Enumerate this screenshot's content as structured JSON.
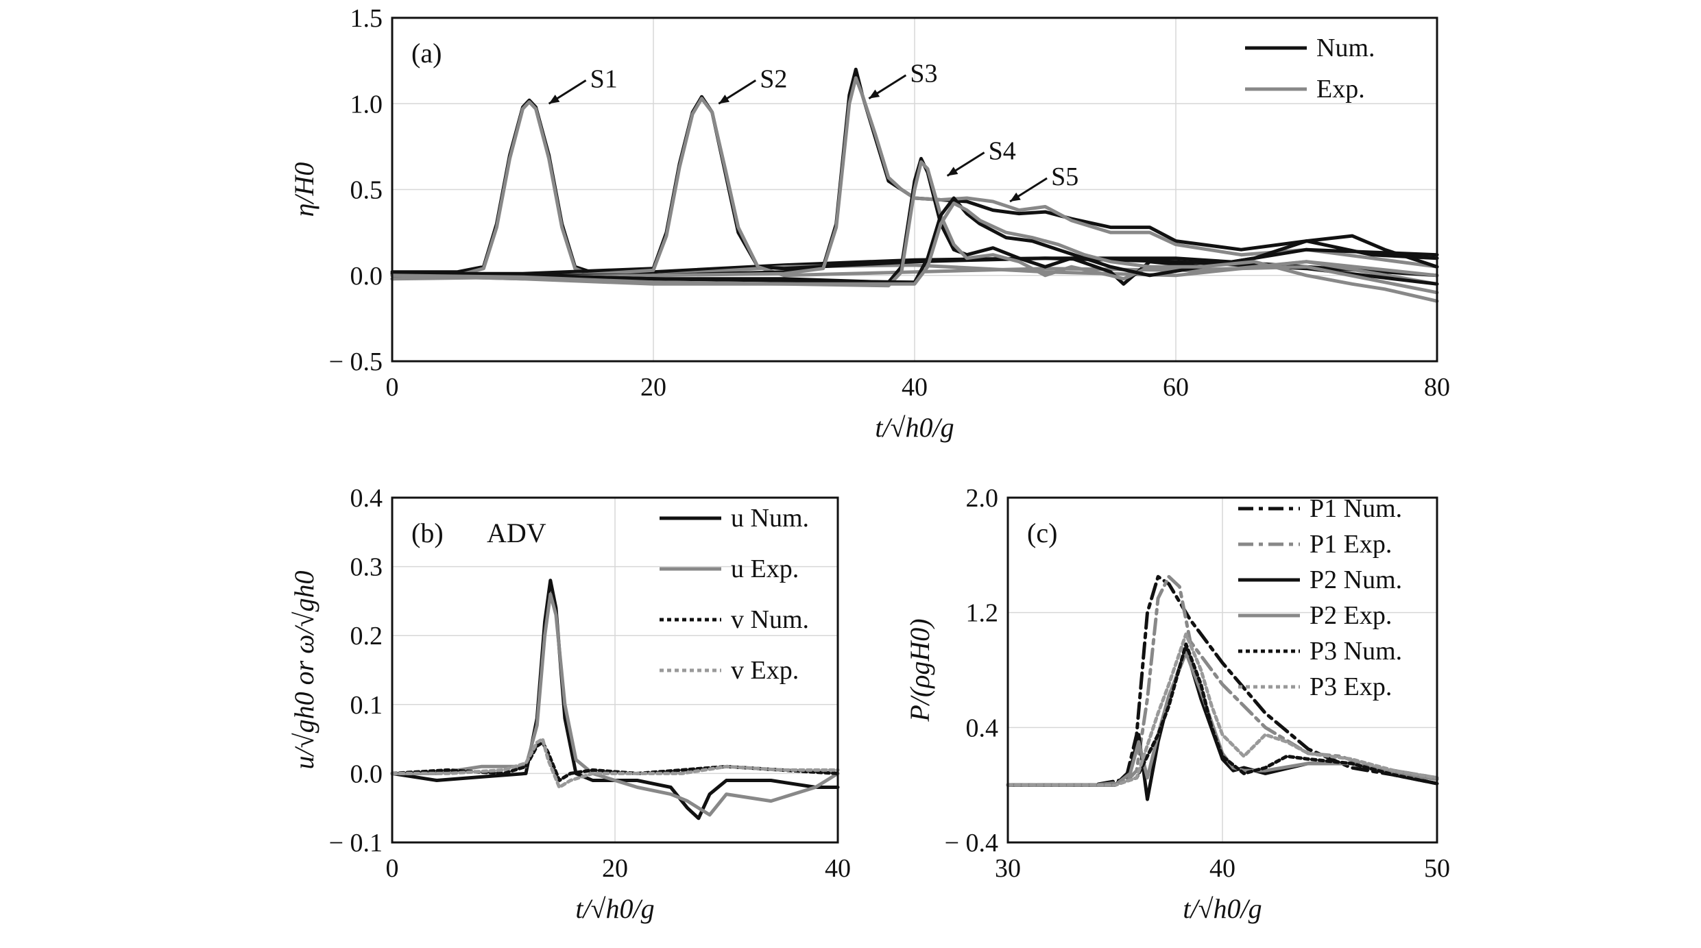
{
  "chart_data": [
    {
      "id": "a",
      "type": "line",
      "panel_label": "(a)",
      "ylabel": "η/H0",
      "xlabel": "t/√h0/g",
      "xlim": [
        0,
        80
      ],
      "ylim": [
        -0.5,
        1.5
      ],
      "xticks": [
        "0",
        "20",
        "40",
        "60",
        "80"
      ],
      "yticks": [
        "− 0.5",
        "0.0",
        "0.5",
        "1.0",
        "1.5"
      ],
      "grid": true,
      "legend_position": "top-right",
      "legend": [
        "Num.",
        "Exp."
      ],
      "annotations": [
        {
          "text": "S1",
          "x": 12.0,
          "y": 1.0
        },
        {
          "text": "S2",
          "x": 25.0,
          "y": 1.0
        },
        {
          "text": "S3",
          "x": 36.5,
          "y": 1.03
        },
        {
          "text": "S4",
          "x": 42.5,
          "y": 0.58
        },
        {
          "text": "S5",
          "x": 47.3,
          "y": 0.43
        }
      ],
      "colors": {
        "num": "#111111",
        "exp": "#888888"
      },
      "series": [
        {
          "name": "Num.",
          "group": "S1",
          "x": [
            0,
            5,
            7,
            8,
            9,
            10,
            10.5,
            11,
            12,
            13,
            14,
            16,
            20,
            30,
            40,
            50,
            60,
            70,
            80
          ],
          "y": [
            0.02,
            0.02,
            0.05,
            0.3,
            0.7,
            0.98,
            1.02,
            0.98,
            0.7,
            0.3,
            0.05,
            0.0,
            0.02,
            0.06,
            0.09,
            0.1,
            0.1,
            0.05,
            0.0
          ]
        },
        {
          "name": "Exp.",
          "group": "S1",
          "x": [
            0,
            5,
            7,
            8,
            9,
            10,
            10.5,
            11,
            12,
            13,
            14,
            16,
            20,
            30,
            40,
            50,
            60,
            70,
            80
          ],
          "y": [
            -0.02,
            0.0,
            0.04,
            0.28,
            0.68,
            0.97,
            1.01,
            0.97,
            0.68,
            0.28,
            0.04,
            -0.02,
            0.0,
            0.05,
            0.06,
            0.02,
            0.0,
            0.08,
            -0.05
          ]
        },
        {
          "name": "Num.",
          "group": "S2",
          "x": [
            0,
            10,
            20,
            21,
            22,
            23,
            23.7,
            24.5,
            25.5,
            26.5,
            28,
            30,
            40,
            50,
            60,
            70,
            80
          ],
          "y": [
            0.01,
            0.01,
            0.04,
            0.25,
            0.65,
            0.95,
            1.04,
            0.95,
            0.6,
            0.25,
            0.05,
            0.04,
            0.08,
            0.1,
            0.08,
            0.04,
            -0.05
          ]
        },
        {
          "name": "Exp.",
          "group": "S2",
          "x": [
            0,
            10,
            20,
            21,
            22,
            23,
            23.7,
            24.5,
            25.5,
            26.5,
            28,
            30,
            40,
            50,
            60,
            70,
            80
          ],
          "y": [
            0.0,
            -0.02,
            0.03,
            0.23,
            0.63,
            0.94,
            1.03,
            0.95,
            0.62,
            0.28,
            0.05,
            0.0,
            0.02,
            0.04,
            0.03,
            0.05,
            -0.1
          ]
        },
        {
          "name": "Num.",
          "group": "S3",
          "x": [
            0,
            10,
            20,
            30,
            33,
            34,
            35,
            35.5,
            36,
            37,
            38,
            39,
            40,
            42,
            44,
            46,
            48,
            50,
            52,
            55,
            58,
            60,
            65,
            70,
            75,
            80
          ],
          "y": [
            0.0,
            0.0,
            0.0,
            0.02,
            0.05,
            0.3,
            1.05,
            1.2,
            1.05,
            0.8,
            0.55,
            0.5,
            0.45,
            0.44,
            0.43,
            0.38,
            0.36,
            0.37,
            0.33,
            0.28,
            0.28,
            0.2,
            0.15,
            0.2,
            0.12,
            0.1
          ]
        },
        {
          "name": "Exp.",
          "group": "S3",
          "x": [
            0,
            10,
            20,
            30,
            33,
            34,
            35,
            35.5,
            36,
            37,
            38,
            39,
            40,
            42,
            44,
            46,
            48,
            50,
            52,
            55,
            58,
            60,
            65,
            70,
            75,
            80
          ],
          "y": [
            -0.02,
            -0.01,
            0.0,
            0.01,
            0.04,
            0.28,
            1.0,
            1.15,
            1.05,
            0.82,
            0.57,
            0.5,
            0.45,
            0.44,
            0.45,
            0.43,
            0.38,
            0.4,
            0.32,
            0.25,
            0.25,
            0.18,
            0.12,
            0.15,
            0.1,
            0.05
          ]
        },
        {
          "name": "Num.",
          "group": "S4",
          "x": [
            0,
            10,
            20,
            30,
            38,
            39,
            40,
            40.5,
            41,
            42,
            43,
            44,
            46,
            48,
            50,
            52,
            55,
            56,
            58,
            62,
            70,
            80
          ],
          "y": [
            0.0,
            0.0,
            -0.02,
            -0.02,
            -0.04,
            0.05,
            0.55,
            0.68,
            0.6,
            0.3,
            0.15,
            0.12,
            0.16,
            0.1,
            0.05,
            0.1,
            0.02,
            -0.05,
            0.08,
            0.05,
            0.15,
            0.12
          ]
        },
        {
          "name": "Exp.",
          "group": "S4",
          "x": [
            0,
            10,
            20,
            30,
            38,
            39,
            40,
            40.5,
            41,
            42,
            43,
            44,
            46,
            48,
            50,
            52,
            55,
            56,
            58,
            62,
            70,
            80
          ],
          "y": [
            0.0,
            -0.02,
            -0.05,
            -0.05,
            -0.06,
            0.02,
            0.5,
            0.66,
            0.62,
            0.35,
            0.18,
            0.1,
            0.12,
            0.08,
            0.0,
            0.05,
            0.0,
            -0.02,
            0.05,
            0.02,
            0.08,
            0.0
          ]
        },
        {
          "name": "Num.",
          "group": "S5",
          "x": [
            0,
            10,
            20,
            30,
            40,
            41,
            42,
            43,
            44,
            45,
            47,
            49,
            51,
            53,
            55,
            58,
            62,
            66,
            70,
            73.5,
            76,
            80
          ],
          "y": [
            0.0,
            0.0,
            -0.02,
            -0.03,
            -0.04,
            0.1,
            0.35,
            0.45,
            0.36,
            0.3,
            0.22,
            0.2,
            0.15,
            0.1,
            0.05,
            0.0,
            0.05,
            0.1,
            0.2,
            0.23,
            0.15,
            0.05
          ]
        },
        {
          "name": "Exp.",
          "group": "S5",
          "x": [
            0,
            10,
            20,
            30,
            40,
            41,
            42,
            43,
            44,
            45,
            47,
            49,
            51,
            53,
            55,
            58,
            62,
            66,
            70,
            73.5,
            76,
            80
          ],
          "y": [
            0.0,
            -0.01,
            -0.04,
            -0.05,
            -0.05,
            0.05,
            0.3,
            0.42,
            0.38,
            0.32,
            0.25,
            0.22,
            0.18,
            0.12,
            0.08,
            0.05,
            0.05,
            0.08,
            0.0,
            -0.05,
            -0.08,
            -0.15
          ]
        }
      ]
    },
    {
      "id": "b",
      "type": "line",
      "panel_label": "(b)",
      "title_inset": "ADV",
      "ylabel": "u/√gh0 or ω/√gh0",
      "xlabel": "t/√h0/g",
      "xlim": [
        0,
        40
      ],
      "ylim": [
        -0.1,
        0.4
      ],
      "xticks": [
        "0",
        "20",
        "40"
      ],
      "yticks": [
        "− 0.1",
        "0.0",
        "0.1",
        "0.2",
        "0.3",
        "0.4"
      ],
      "grid": true,
      "legend_position": "top-right",
      "legend": [
        "u Num.",
        "u Exp.",
        "v Num.",
        "v Exp."
      ],
      "series": [
        {
          "name": "u Num.",
          "x": [
            0,
            4,
            8,
            12,
            13,
            13.7,
            14.2,
            14.7,
            15.5,
            16.5,
            18,
            22,
            25,
            26.5,
            27.5,
            28.5,
            30,
            34,
            38,
            40
          ],
          "y": [
            0.0,
            -0.01,
            -0.005,
            0.0,
            0.08,
            0.22,
            0.28,
            0.24,
            0.08,
            0.0,
            -0.01,
            -0.01,
            -0.02,
            -0.05,
            -0.065,
            -0.03,
            -0.01,
            -0.01,
            -0.02,
            -0.02
          ]
        },
        {
          "name": "u Exp.",
          "x": [
            0,
            4,
            8,
            12,
            13,
            13.7,
            14.2,
            14.7,
            15.5,
            16.5,
            18,
            22,
            25,
            26.5,
            27.5,
            28.5,
            30,
            34,
            38,
            40
          ],
          "y": [
            0.0,
            0.0,
            0.01,
            0.01,
            0.07,
            0.2,
            0.26,
            0.23,
            0.1,
            0.02,
            0.0,
            -0.02,
            -0.03,
            -0.04,
            -0.05,
            -0.06,
            -0.03,
            -0.04,
            -0.02,
            0.0
          ]
        },
        {
          "name": "v Num.",
          "x": [
            0,
            5,
            10,
            12,
            13,
            13.5,
            14,
            15,
            16,
            18,
            22,
            26,
            30,
            35,
            40
          ],
          "y": [
            0.0,
            0.005,
            0.0,
            0.01,
            0.04,
            0.045,
            0.03,
            -0.01,
            0.0,
            0.005,
            0.0,
            0.005,
            0.01,
            0.005,
            0.0
          ]
        },
        {
          "name": "v Exp.",
          "x": [
            0,
            5,
            10,
            12,
            13,
            13.5,
            14,
            15,
            16,
            18,
            22,
            26,
            30,
            35,
            40
          ],
          "y": [
            0.0,
            0.0,
            0.005,
            0.015,
            0.045,
            0.05,
            0.02,
            -0.02,
            -0.01,
            0.0,
            0.0,
            0.0,
            0.01,
            0.005,
            0.005
          ]
        }
      ]
    },
    {
      "id": "c",
      "type": "line",
      "panel_label": "(c)",
      "ylabel": "P/(ρgH0)",
      "xlabel": "t/√h0/g",
      "xlim": [
        30,
        50
      ],
      "ylim": [
        -0.4,
        2.0
      ],
      "xticks": [
        "30",
        "40",
        "50"
      ],
      "yticks": [
        "− 0.4",
        "0.4",
        "1.2",
        "2.0"
      ],
      "grid": true,
      "legend_position": "top-right",
      "legend": [
        "P1 Num.",
        "P1 Exp.",
        "P2 Num.",
        "P2 Exp.",
        "P3 Num.",
        "P3 Exp."
      ],
      "series": [
        {
          "name": "P1 Num.",
          "x": [
            30,
            34,
            35.5,
            36,
            36.5,
            37,
            37.5,
            38.5,
            40,
            42,
            44,
            46,
            48,
            50
          ],
          "y": [
            0.0,
            0.0,
            0.04,
            0.35,
            1.2,
            1.45,
            1.4,
            1.15,
            0.85,
            0.5,
            0.25,
            0.12,
            0.07,
            0.01
          ]
        },
        {
          "name": "P1 Exp.",
          "x": [
            30,
            34,
            35.5,
            36,
            36.5,
            37,
            37.5,
            38,
            38.5,
            40,
            42,
            44,
            45.5,
            47,
            48,
            50
          ],
          "y": [
            0.0,
            0.0,
            0.02,
            0.1,
            0.6,
            1.3,
            1.45,
            1.38,
            1.0,
            0.7,
            0.4,
            0.22,
            0.2,
            0.12,
            0.1,
            0.05
          ]
        },
        {
          "name": "P2 Num.",
          "x": [
            30,
            35,
            35.7,
            36.1,
            36.5,
            37,
            37.5,
            38.3,
            39,
            40,
            40.5,
            41,
            42,
            44,
            46,
            48,
            50
          ],
          "y": [
            0.0,
            0.0,
            0.1,
            0.35,
            -0.1,
            0.3,
            0.6,
            0.95,
            0.6,
            0.18,
            0.1,
            0.12,
            0.08,
            0.15,
            0.15,
            0.07,
            0.01
          ]
        },
        {
          "name": "P2 Exp.",
          "x": [
            30,
            35,
            35.7,
            36.1,
            36.5,
            37,
            37.5,
            38.3,
            39,
            40,
            40.5,
            41,
            42,
            44,
            46,
            48,
            50
          ],
          "y": [
            0.0,
            0.0,
            0.08,
            0.3,
            0.05,
            0.35,
            0.62,
            0.92,
            0.65,
            0.22,
            0.12,
            0.1,
            0.1,
            0.15,
            0.15,
            0.08,
            0.04
          ]
        },
        {
          "name": "P3 Num.",
          "x": [
            30,
            35,
            36,
            37,
            37.5,
            38.3,
            39,
            39.5,
            40,
            41,
            42,
            43,
            44,
            46,
            48,
            50
          ],
          "y": [
            0.0,
            0.0,
            0.05,
            0.35,
            0.55,
            0.98,
            0.7,
            0.4,
            0.2,
            0.08,
            0.12,
            0.2,
            0.18,
            0.15,
            0.07,
            0.01
          ]
        },
        {
          "name": "P3 Exp.",
          "x": [
            30,
            35,
            36,
            37,
            37.5,
            38.3,
            39,
            39.5,
            40,
            41,
            42,
            43,
            44,
            46,
            48,
            50
          ],
          "y": [
            0.0,
            0.0,
            0.05,
            0.5,
            0.7,
            1.05,
            0.8,
            0.55,
            0.35,
            0.2,
            0.35,
            0.3,
            0.22,
            0.18,
            0.1,
            0.05
          ]
        }
      ]
    }
  ]
}
